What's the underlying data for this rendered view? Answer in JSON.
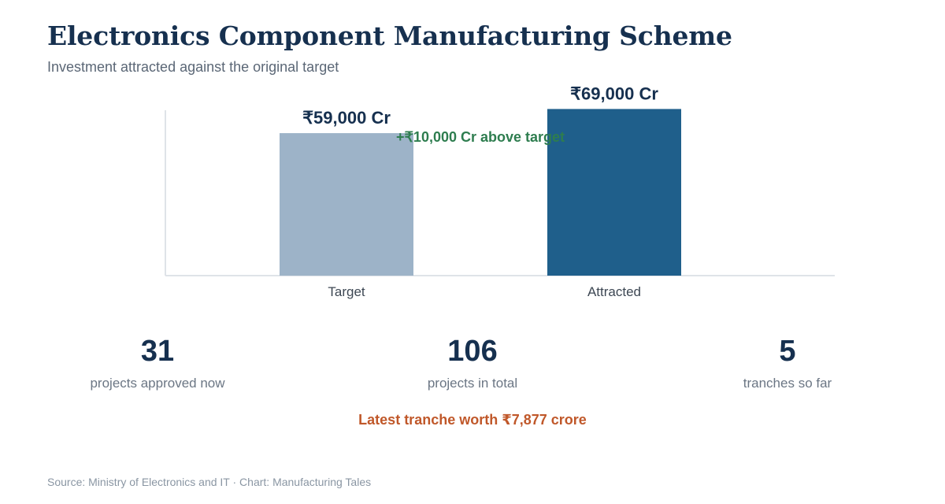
{
  "header": {
    "title": "Electronics Component Manufacturing Scheme",
    "subtitle": "Investment attracted against the original target"
  },
  "chart_data": {
    "type": "bar",
    "categories": [
      "Target",
      "Attracted"
    ],
    "values": [
      59000,
      69000
    ],
    "value_labels": [
      "₹59,000 Cr",
      "₹69,000 Cr"
    ],
    "unit": "Cr",
    "ylim": [
      0,
      75000
    ],
    "grid": false,
    "colors": [
      "#9db3c8",
      "#1f5f8b"
    ],
    "annotation": "+₹10,000 Cr above target",
    "annotation_color": "#2e7d4f"
  },
  "stats": [
    {
      "value": "31",
      "label": "projects approved now"
    },
    {
      "value": "106",
      "label": "projects in total"
    },
    {
      "value": "5",
      "label": "tranches so far"
    }
  ],
  "note": "Latest tranche worth ₹7,877 crore",
  "footer": {
    "source": "Source: Ministry of Electronics and IT · Chart: Manufacturing Tales"
  }
}
